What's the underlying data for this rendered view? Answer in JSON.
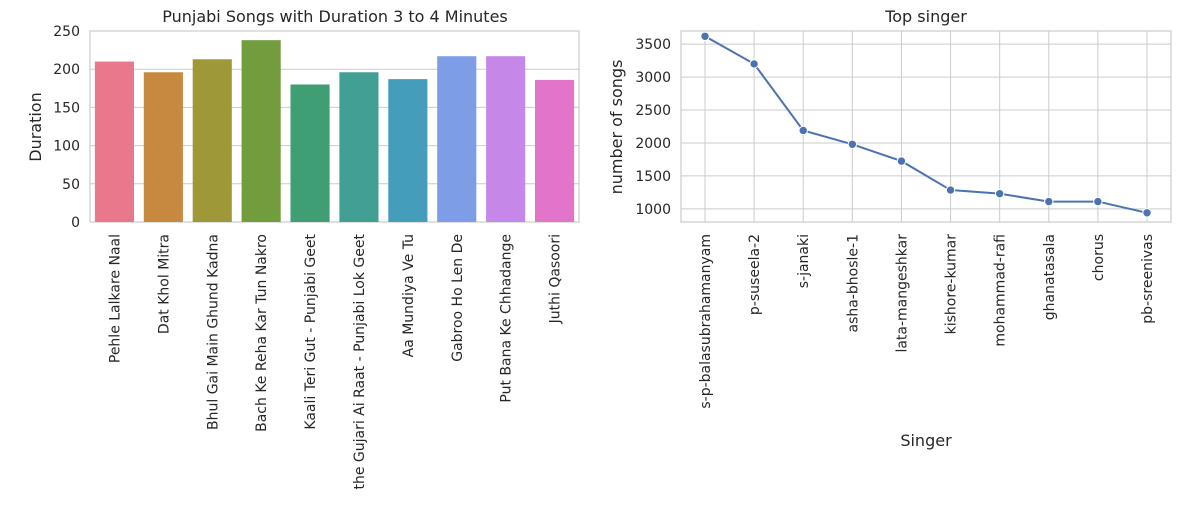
{
  "chart_data": [
    {
      "type": "bar",
      "title": "Punjabi Songs with Duration 3 to 4 Minutes",
      "xlabel": "",
      "ylabel": "Duration",
      "ylim": [
        0,
        250
      ],
      "yticks": [
        0,
        50,
        100,
        150,
        200,
        250
      ],
      "grid": true,
      "categories": [
        "Pehle Lalkare Naal",
        "Dat Khol Mitra",
        "Bhul Gai Main Ghund Kadna",
        "Bach Ke Reha Kar Tun Nakro",
        "Kaali Teri Gut - Punjabi Geet",
        "the Gujari Ai Raat - Punjabi Lok Geet",
        "Aa Mundiya Ve Tu",
        "Gabroo Ho Len De",
        "Put Bana Ke Chhadange",
        "Juthi Qasoori"
      ],
      "values": [
        210,
        196,
        213,
        238,
        180,
        196,
        187,
        217,
        217,
        186
      ],
      "colors": [
        "#e9788c",
        "#c6893f",
        "#9e9838",
        "#729d3d",
        "#3f9e73",
        "#419f94",
        "#449dba",
        "#7d9ee6",
        "#c587e8",
        "#e275c9"
      ]
    },
    {
      "type": "line",
      "title": "Top singer",
      "xlabel": "Singer",
      "ylabel": "number of songs",
      "ylim": [
        800,
        3700
      ],
      "yticks": [
        1000,
        1500,
        2000,
        2500,
        3000,
        3500
      ],
      "grid": true,
      "categories": [
        "s-p-balasubrahamanyam",
        "p-suseela-2",
        "s-janaki",
        "asha-bhosle-1",
        "lata-mangeshkar",
        "kishore-kumar",
        "mohammad-rafi",
        "ghanatasala",
        "chorus",
        "pb-sreenivas"
      ],
      "values": [
        3620,
        3200,
        2190,
        1980,
        1725,
        1285,
        1230,
        1110,
        1110,
        940
      ],
      "color": "#4c72b0"
    }
  ]
}
